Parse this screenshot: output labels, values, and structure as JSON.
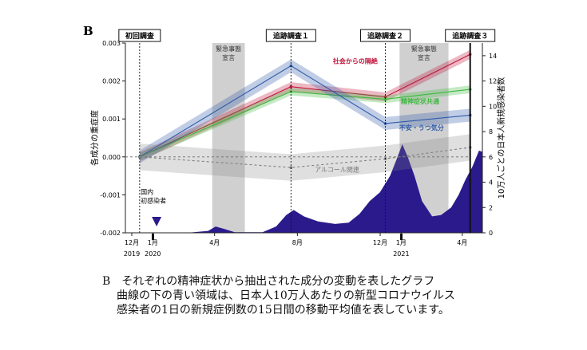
{
  "figure": {
    "panel_label": "B",
    "caption": [
      "B　それぞれの精神症状から抽出された成分の変動を表したグラフ",
      "曲線の下の青い領域は、日本人10万人あたりの新型コロナウイルス",
      "感染者の1日の新規症例数の15日間の移動平均値を表しています。"
    ]
  },
  "chart_data": {
    "type": "line",
    "ylabel_left": "各成分の重症度",
    "ylabel_right": "10万人ごとの日本人新規感染者数",
    "ylim_left": [
      -0.002,
      0.003
    ],
    "yticks_left": [
      "0.003",
      "0.002",
      "0.001",
      "0.000",
      "-0.001",
      "-0.002"
    ],
    "ylim_right": [
      0,
      15
    ],
    "yticks_right": [
      "14",
      "12",
      "10",
      "8",
      "6",
      "4",
      "2",
      "0"
    ],
    "x_ticks": [
      {
        "label": "12月",
        "year": "2019",
        "date": "2019-12"
      },
      {
        "label": "1月",
        "year": "2020",
        "date": "2020-01"
      },
      {
        "label": "4月",
        "year": "",
        "date": "2020-04"
      },
      {
        "label": "8月",
        "year": "",
        "date": "2020-08"
      },
      {
        "label": "12月",
        "year": "",
        "date": "2020-12"
      },
      {
        "label": "1月",
        "year": "2021",
        "date": "2021-01"
      },
      {
        "label": "4月",
        "year": "",
        "date": "2021-04"
      }
    ],
    "surveys": [
      {
        "label": "初回調査",
        "date": "2019-12-22"
      },
      {
        "label": "追跡調査１",
        "date": "2020-08-01"
      },
      {
        "label": "追跡調査２",
        "date": "2020-12-18"
      },
      {
        "label": "追跡調査３",
        "date": "2021-04-22"
      }
    ],
    "emergency_periods": [
      {
        "label": "緊急事態\n宣言",
        "start": "2020-04-07",
        "end": "2020-05-25"
      },
      {
        "label": "緊急事態\n宣言",
        "start": "2021-01-08",
        "end": "2021-03-21"
      }
    ],
    "annotation_first_case": {
      "label": "国内\n初感染者",
      "date": "2020-01-16"
    },
    "series": [
      {
        "name": "社会からの隔絶",
        "color": "#c0143c",
        "x": [
          "2019-12-22",
          "2020-08-01",
          "2020-12-18",
          "2021-04-22"
        ],
        "y": [
          0.0,
          0.00185,
          0.00158,
          0.0027
        ],
        "ci": 0.00012
      },
      {
        "name": "精神症状共通",
        "color": "#3fb83f",
        "x": [
          "2019-12-22",
          "2020-08-01",
          "2020-12-18",
          "2021-04-22"
        ],
        "y": [
          0.0,
          0.00172,
          0.00152,
          0.00178
        ],
        "ci": 0.0001
      },
      {
        "name": "不安・うつ気分",
        "color": "#2f5ba8",
        "x": [
          "2019-12-22",
          "2020-08-01",
          "2020-12-18",
          "2021-04-22"
        ],
        "y": [
          0.0,
          0.0024,
          0.00088,
          0.0011
        ],
        "ci": 0.00017
      },
      {
        "name": "アルコール関連",
        "color": "#808080",
        "dashed": true,
        "x": [
          "2019-12-22",
          "2020-08-01",
          "2020-12-18",
          "2021-04-22"
        ],
        "y": [
          0.0,
          -0.00028,
          -5e-05,
          0.00025
        ],
        "ci": 0.00035
      }
    ],
    "cases_area": {
      "color": "#2a1a8c",
      "x": [
        "2019-12-22",
        "2020-03-01",
        "2020-04-01",
        "2020-04-12",
        "2020-04-25",
        "2020-05-10",
        "2020-06-20",
        "2020-07-10",
        "2020-07-25",
        "2020-08-05",
        "2020-08-20",
        "2020-09-10",
        "2020-10-05",
        "2020-10-25",
        "2020-11-10",
        "2020-11-25",
        "2020-12-10",
        "2020-12-25",
        "2021-01-05",
        "2021-01-12",
        "2021-01-20",
        "2021-01-30",
        "2021-02-10",
        "2021-02-25",
        "2021-03-10",
        "2021-03-25",
        "2021-04-05",
        "2021-04-15",
        "2021-04-25",
        "2021-05-05",
        "2021-05-10"
      ],
      "y": [
        0,
        0,
        0.15,
        0.5,
        0.3,
        0.05,
        0.05,
        0.5,
        1.4,
        1.8,
        1.3,
        0.9,
        0.7,
        0.8,
        1.5,
        2.5,
        3.2,
        4.5,
        6.0,
        7.0,
        6.0,
        4.5,
        2.5,
        1.3,
        1.4,
        2.0,
        3.0,
        4.2,
        5.2,
        6.5,
        6.4
      ]
    }
  }
}
